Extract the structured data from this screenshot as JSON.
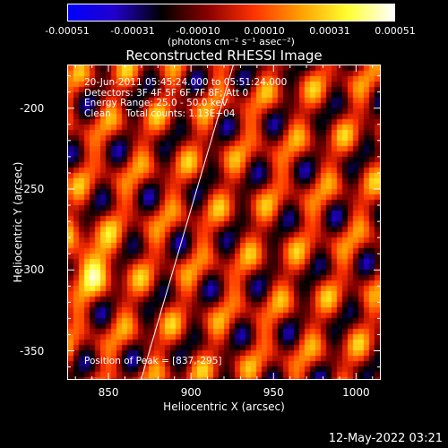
{
  "chart_data": {
    "type": "heatmap",
    "title": "Reconstructed RHESSI Image",
    "xlabel": "Heliocentric X (arcsec)",
    "ylabel": "Heliocentric Y (arcsec)",
    "xlim": [
      825,
      1015
    ],
    "ylim": [
      -368,
      -173
    ],
    "x_ticks": [
      "850",
      "900",
      "950",
      "1000"
    ],
    "x_tick_values": [
      850,
      900,
      950,
      1000
    ],
    "y_ticks": [
      "-200",
      "-250",
      "-300",
      "-350"
    ],
    "y_tick_values": [
      -200,
      -250,
      -300,
      -350
    ],
    "colorbar": {
      "ticks": [
        "-0.00051",
        "-0.00031",
        "-0.00010",
        "0.00010",
        "0.00031",
        "0.00051"
      ],
      "unit_label": "(photons cm⁻² s⁻¹ asec⁻²)",
      "colors": [
        "#0000ff",
        "#2200cc",
        "#000000",
        "#8a0000",
        "#ff3300",
        "#ffa000",
        "#ffff30",
        "#ffffff"
      ]
    },
    "annotations": {
      "line1": "20-Jun-2011 05:45:24.000 to 05:51:24.000",
      "line2": "Detectors: 3F 4F 5F 6F 7F 8F; Att 0",
      "line3": "Energy Range: 25.0 - 50.0 keV",
      "line4": "Clean     Total counts: 1.13E+04",
      "peak": "Position of Peak = [837,-295]"
    },
    "limb_line": [
      [
        869,
        -368
      ],
      [
        925,
        -173
      ]
    ],
    "peak_position": [
      837,
      -295
    ]
  },
  "footer": {
    "timestamp": "12-May-2022 03:21"
  }
}
